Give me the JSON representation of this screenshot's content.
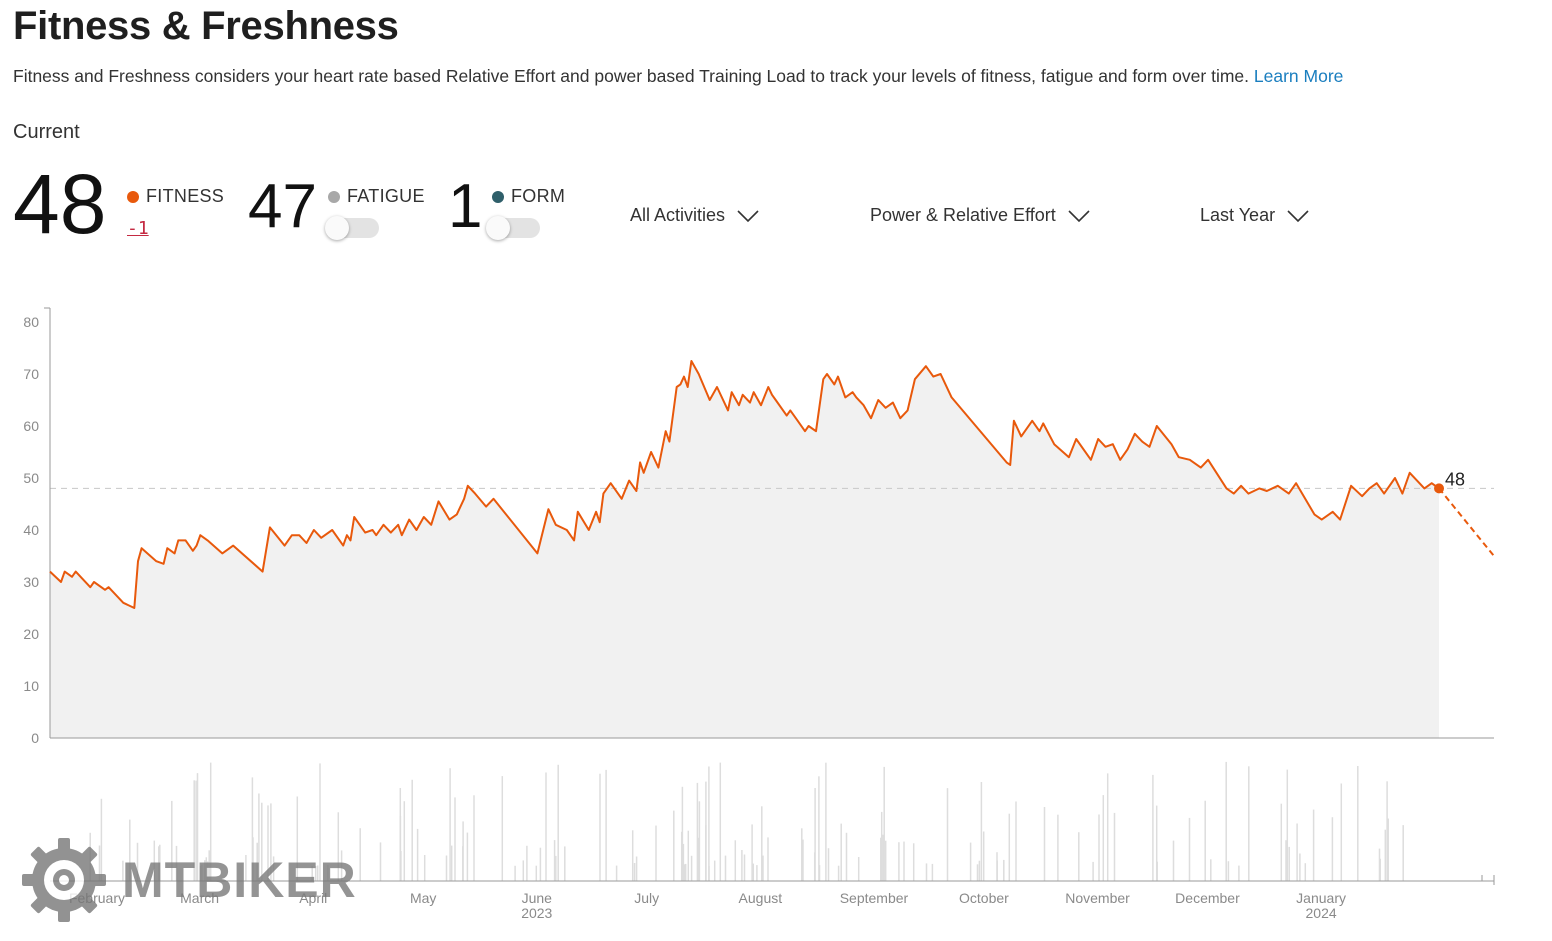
{
  "header": {
    "title": "Fitness & Freshness",
    "description": "Fitness and Freshness considers your heart rate based Relative Effort and power based Training Load to track your levels of fitness, fatigue and form over time.",
    "learn_more": "Learn More"
  },
  "current": {
    "label": "Current",
    "fitness": {
      "value": "48",
      "label": "FITNESS",
      "delta": "-1",
      "color": "#e8590c"
    },
    "fatigue": {
      "value": "47",
      "label": "FATIGUE",
      "color": "#a8a8a8",
      "toggle_on": false
    },
    "form": {
      "value": "1",
      "label": "FORM",
      "color": "#2f5f6a",
      "toggle_on": false
    }
  },
  "filters": {
    "activities": "All Activities",
    "metric": "Power & Relative Effort",
    "range": "Last Year"
  },
  "watermark": "MTBIKER",
  "colors": {
    "accent": "#e8590c",
    "link": "#1a7ebf",
    "area": "#f1f1f1",
    "bars": "#dddddd"
  },
  "chart_data": {
    "type": "line",
    "title": "",
    "xlabel": "",
    "ylabel": "",
    "ylim": [
      0,
      80
    ],
    "yticks": [
      0,
      10,
      20,
      30,
      40,
      50,
      60,
      70,
      80
    ],
    "grid": false,
    "x_range": [
      "2023-01-23",
      "2024-02-21"
    ],
    "x_ticks": [
      {
        "date": "2023-02-01",
        "label": "February",
        "sub": ""
      },
      {
        "date": "2023-03-01",
        "label": "March",
        "sub": ""
      },
      {
        "date": "2023-04-01",
        "label": "April",
        "sub": ""
      },
      {
        "date": "2023-05-01",
        "label": "May",
        "sub": ""
      },
      {
        "date": "2023-06-01",
        "label": "June",
        "sub": "2023"
      },
      {
        "date": "2023-07-01",
        "label": "July",
        "sub": ""
      },
      {
        "date": "2023-08-01",
        "label": "August",
        "sub": ""
      },
      {
        "date": "2023-09-01",
        "label": "September",
        "sub": ""
      },
      {
        "date": "2023-10-01",
        "label": "October",
        "sub": ""
      },
      {
        "date": "2023-11-01",
        "label": "November",
        "sub": ""
      },
      {
        "date": "2023-12-01",
        "label": "December",
        "sub": ""
      },
      {
        "date": "2024-01-01",
        "label": "January",
        "sub": "2024"
      }
    ],
    "reference_line": {
      "value": 48,
      "style": "dashed"
    },
    "current_point": {
      "date": "2024-02-06",
      "value": 48,
      "label": "48"
    },
    "series": [
      {
        "color": "#e8590c",
        "points": [
          [
            "2023-01-23",
            32
          ],
          [
            "2023-01-26",
            30
          ],
          [
            "2023-01-27",
            32
          ],
          [
            "2023-01-29",
            31
          ],
          [
            "2023-01-30",
            32
          ],
          [
            "2023-02-03",
            29
          ],
          [
            "2023-02-04",
            30
          ],
          [
            "2023-02-07",
            28.5
          ],
          [
            "2023-02-08",
            29
          ],
          [
            "2023-02-12",
            26
          ],
          [
            "2023-02-15",
            25
          ],
          [
            "2023-02-16",
            34
          ],
          [
            "2023-02-17",
            36.5
          ],
          [
            "2023-02-21",
            34
          ],
          [
            "2023-02-23",
            33.5
          ],
          [
            "2023-02-24",
            36.5
          ],
          [
            "2023-02-26",
            35.5
          ],
          [
            "2023-02-27",
            38
          ],
          [
            "2023-03-01",
            38
          ],
          [
            "2023-03-03",
            36
          ],
          [
            "2023-03-04",
            37
          ],
          [
            "2023-03-05",
            39
          ],
          [
            "2023-03-07",
            38
          ],
          [
            "2023-03-11",
            35.5
          ],
          [
            "2023-03-14",
            37
          ],
          [
            "2023-03-22",
            32
          ],
          [
            "2023-03-24",
            40.5
          ],
          [
            "2023-03-28",
            37
          ],
          [
            "2023-03-30",
            39
          ],
          [
            "2023-04-01",
            39
          ],
          [
            "2023-04-03",
            37.5
          ],
          [
            "2023-04-05",
            40
          ],
          [
            "2023-04-07",
            38.5
          ],
          [
            "2023-04-10",
            40
          ],
          [
            "2023-04-13",
            37
          ],
          [
            "2023-04-14",
            39
          ],
          [
            "2023-04-15",
            38
          ],
          [
            "2023-04-16",
            42.5
          ],
          [
            "2023-04-19",
            39.5
          ],
          [
            "2023-04-21",
            40
          ],
          [
            "2023-04-22",
            39
          ],
          [
            "2023-04-24",
            41
          ],
          [
            "2023-04-26",
            39.5
          ],
          [
            "2023-04-28",
            41
          ],
          [
            "2023-04-29",
            39
          ],
          [
            "2023-05-01",
            42
          ],
          [
            "2023-05-03",
            40
          ],
          [
            "2023-05-05",
            42.5
          ],
          [
            "2023-05-07",
            41
          ],
          [
            "2023-05-09",
            45.5
          ],
          [
            "2023-05-12",
            42
          ],
          [
            "2023-05-14",
            43
          ],
          [
            "2023-05-16",
            46
          ],
          [
            "2023-05-17",
            48.5
          ],
          [
            "2023-05-19",
            47
          ],
          [
            "2023-05-22",
            44.5
          ],
          [
            "2023-05-24",
            46
          ],
          [
            "2023-06-05",
            35.5
          ],
          [
            "2023-06-08",
            44
          ],
          [
            "2023-06-10",
            41
          ],
          [
            "2023-06-13",
            40
          ],
          [
            "2023-06-15",
            38
          ],
          [
            "2023-06-16",
            43.5
          ],
          [
            "2023-06-19",
            40
          ],
          [
            "2023-06-21",
            43.5
          ],
          [
            "2023-06-22",
            41.5
          ],
          [
            "2023-06-23",
            47
          ],
          [
            "2023-06-25",
            49
          ],
          [
            "2023-06-28",
            46
          ],
          [
            "2023-06-30",
            49.5
          ],
          [
            "2023-07-02",
            47.5
          ],
          [
            "2023-07-03",
            53
          ],
          [
            "2023-07-04",
            51
          ],
          [
            "2023-07-06",
            55
          ],
          [
            "2023-07-08",
            52
          ],
          [
            "2023-07-10",
            59
          ],
          [
            "2023-07-11",
            57
          ],
          [
            "2023-07-13",
            67.5
          ],
          [
            "2023-07-14",
            68
          ],
          [
            "2023-07-15",
            69.5
          ],
          [
            "2023-07-16",
            67.5
          ],
          [
            "2023-07-17",
            72.5
          ],
          [
            "2023-07-19",
            70
          ],
          [
            "2023-07-22",
            65
          ],
          [
            "2023-07-24",
            67.5
          ],
          [
            "2023-07-27",
            63
          ],
          [
            "2023-07-28",
            66.5
          ],
          [
            "2023-07-30",
            64
          ],
          [
            "2023-07-31",
            66
          ],
          [
            "2023-08-02",
            64.5
          ],
          [
            "2023-08-03",
            66.5
          ],
          [
            "2023-08-05",
            64
          ],
          [
            "2023-08-07",
            67.5
          ],
          [
            "2023-08-08",
            66
          ],
          [
            "2023-08-09",
            65
          ],
          [
            "2023-08-12",
            62
          ],
          [
            "2023-08-13",
            63
          ],
          [
            "2023-08-15",
            61
          ],
          [
            "2023-08-17",
            59
          ],
          [
            "2023-08-18",
            60
          ],
          [
            "2023-08-20",
            59
          ],
          [
            "2023-08-22",
            69
          ],
          [
            "2023-08-23",
            70
          ],
          [
            "2023-08-25",
            68
          ],
          [
            "2023-08-26",
            69.5
          ],
          [
            "2023-08-28",
            65.5
          ],
          [
            "2023-08-30",
            66.5
          ],
          [
            "2023-08-31",
            65.5
          ],
          [
            "2023-09-02",
            64
          ],
          [
            "2023-09-04",
            61.5
          ],
          [
            "2023-09-06",
            65
          ],
          [
            "2023-09-08",
            63.5
          ],
          [
            "2023-09-10",
            64.5
          ],
          [
            "2023-09-12",
            61.5
          ],
          [
            "2023-09-14",
            63
          ],
          [
            "2023-09-16",
            69
          ],
          [
            "2023-09-19",
            71.5
          ],
          [
            "2023-09-21",
            69.5
          ],
          [
            "2023-09-23",
            70
          ],
          [
            "2023-09-26",
            65.5
          ],
          [
            "2023-10-11",
            53
          ],
          [
            "2023-10-12",
            52.5
          ],
          [
            "2023-10-13",
            61
          ],
          [
            "2023-10-15",
            58
          ],
          [
            "2023-10-18",
            61
          ],
          [
            "2023-10-20",
            59
          ],
          [
            "2023-10-21",
            60.5
          ],
          [
            "2023-10-24",
            56.5
          ],
          [
            "2023-10-28",
            54
          ],
          [
            "2023-10-30",
            57.5
          ],
          [
            "2023-11-03",
            53.5
          ],
          [
            "2023-11-05",
            57.5
          ],
          [
            "2023-11-07",
            56
          ],
          [
            "2023-11-09",
            56.5
          ],
          [
            "2023-11-11",
            53.5
          ],
          [
            "2023-11-13",
            55.5
          ],
          [
            "2023-11-15",
            58.5
          ],
          [
            "2023-11-17",
            57
          ],
          [
            "2023-11-19",
            56
          ],
          [
            "2023-11-21",
            60
          ],
          [
            "2023-11-25",
            56.5
          ],
          [
            "2023-11-27",
            54
          ],
          [
            "2023-11-30",
            53.5
          ],
          [
            "2023-12-03",
            52
          ],
          [
            "2023-12-05",
            53.5
          ],
          [
            "2023-12-10",
            48
          ],
          [
            "2023-12-12",
            47
          ],
          [
            "2023-12-14",
            48.5
          ],
          [
            "2023-12-16",
            47
          ],
          [
            "2023-12-19",
            48
          ],
          [
            "2023-12-21",
            47.5
          ],
          [
            "2023-12-24",
            48.5
          ],
          [
            "2023-12-27",
            47
          ],
          [
            "2023-12-29",
            49
          ],
          [
            "2024-01-03",
            43
          ],
          [
            "2024-01-05",
            42
          ],
          [
            "2024-01-08",
            43.5
          ],
          [
            "2024-01-10",
            42
          ],
          [
            "2024-01-13",
            48.5
          ],
          [
            "2024-01-16",
            46.5
          ],
          [
            "2024-01-18",
            48
          ],
          [
            "2024-01-20",
            49
          ],
          [
            "2024-01-22",
            47
          ],
          [
            "2024-01-25",
            50
          ],
          [
            "2024-01-27",
            47
          ],
          [
            "2024-01-29",
            51
          ],
          [
            "2024-01-31",
            49.5
          ],
          [
            "2024-02-02",
            48
          ],
          [
            "2024-02-04",
            49
          ],
          [
            "2024-02-06",
            48
          ]
        ]
      }
    ],
    "projection": [
      [
        "2024-02-06",
        48
      ],
      [
        "2024-02-21",
        35
      ]
    ]
  }
}
